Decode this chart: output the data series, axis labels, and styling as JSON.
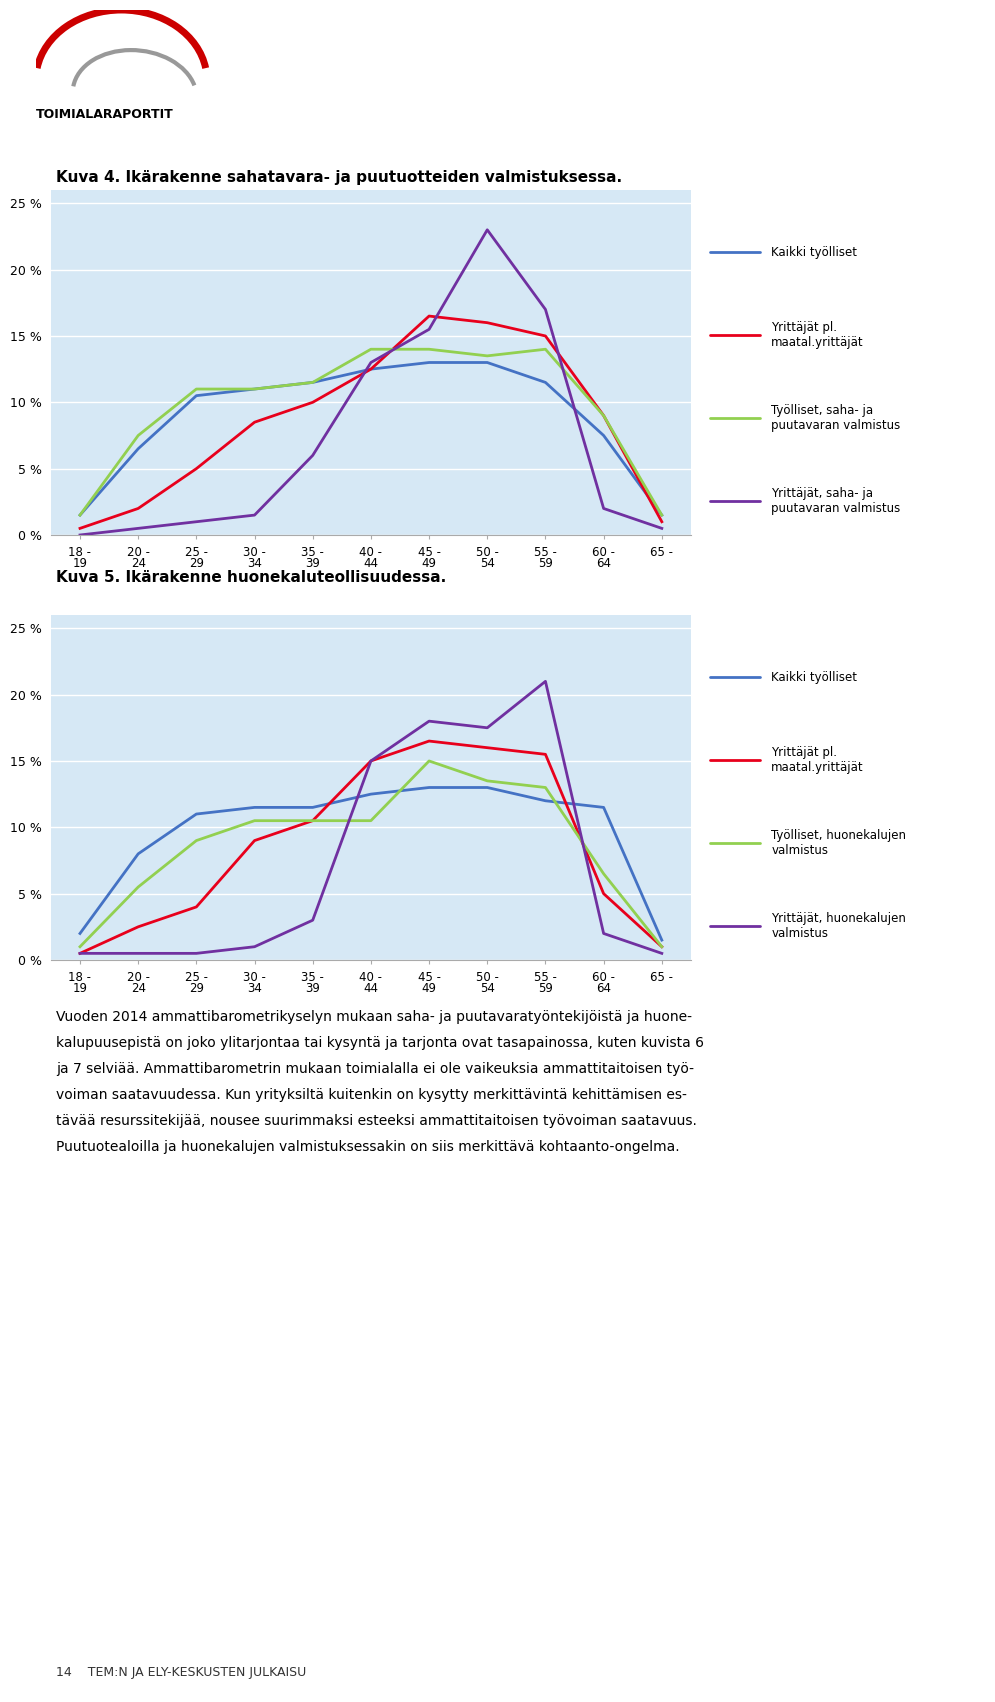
{
  "title1": "Kuva 4. Ikärakenne sahatavara- ja puutuotteiden valmistuksessa.",
  "title2": "Kuva 5. Ikärakenne huonekaluteollisuudessa.",
  "x_labels_top": [
    "18 -",
    "20 -",
    "25 -",
    "30 -",
    "35 -",
    "40 -",
    "45 -",
    "50 -",
    "55 -",
    "60 -",
    "65 -"
  ],
  "x_labels_bot": [
    "19",
    "24",
    "29",
    "34",
    "39",
    "44",
    "49",
    "54",
    "59",
    "64",
    ""
  ],
  "chart1": {
    "kaikki_tyolliset": [
      1.5,
      6.5,
      10.5,
      11.0,
      11.5,
      12.5,
      13.0,
      13.0,
      11.5,
      7.5,
      1.5
    ],
    "yrittajat_pl_maatal": [
      0.5,
      2.0,
      5.0,
      8.5,
      10.0,
      12.5,
      16.5,
      16.0,
      15.0,
      9.0,
      1.0
    ],
    "tyolliset_saha": [
      1.5,
      7.5,
      11.0,
      11.0,
      11.5,
      14.0,
      14.0,
      13.5,
      14.0,
      9.0,
      1.5
    ],
    "yrittajat_saha": [
      0.0,
      0.5,
      1.0,
      1.5,
      6.0,
      13.0,
      15.5,
      23.0,
      17.0,
      2.0,
      0.5
    ]
  },
  "chart2": {
    "kaikki_tyolliset": [
      2.0,
      8.0,
      11.0,
      11.5,
      11.5,
      12.5,
      13.0,
      13.0,
      12.0,
      11.5,
      1.5
    ],
    "yrittajat_pl_maatal": [
      0.5,
      2.5,
      4.0,
      9.0,
      10.5,
      15.0,
      16.5,
      16.0,
      15.5,
      5.0,
      1.0
    ],
    "tyolliset_huone": [
      1.0,
      5.5,
      9.0,
      10.5,
      10.5,
      10.5,
      15.0,
      13.5,
      13.0,
      6.5,
      1.0
    ],
    "yrittajat_huone": [
      0.5,
      0.5,
      0.5,
      1.0,
      3.0,
      15.0,
      18.0,
      17.5,
      21.0,
      2.0,
      0.5
    ]
  },
  "legend1": [
    "Kaikki työlliset",
    "Yrittäjät pl.\nmaatal.yrittäjät",
    "Työlliset, saha- ja\npuutavaran valmistus",
    "Yrittäjät, saha- ja\npuutavaran valmistus"
  ],
  "legend2": [
    "Kaikki työlliset",
    "Yrittäjät pl.\nmaatal.yrittäjät",
    "Työlliset, huonekalujen\nvalmistus",
    "Yrittäjät, huonekalujen\nvalmistus"
  ],
  "colors": [
    "#4472C4",
    "#E8001C",
    "#92D050",
    "#7030A0"
  ],
  "bg_color": "#D6E8F5",
  "ylim": [
    0.0,
    0.26
  ],
  "yticks": [
    0.0,
    0.05,
    0.1,
    0.15,
    0.2,
    0.25
  ],
  "ytick_labels": [
    "0 %",
    "5 %",
    "10 %",
    "15 %",
    "20 %",
    "25 %"
  ],
  "body_text_lines": [
    "Vuoden 2014 ammattibarometrikyselyn mukaan saha- ja puutavaratyöntekijöistä ja huone-",
    "kalupuusepistä on joko ylitarjontaa tai kysyntä ja tarjonta ovat tasapainossa, kuten kuvista 6",
    "ja 7 selviää. Ammattibarometrin mukaan toimialalla ei ole vaikeuksia ammattitaitoisen työ-",
    "voiman saatavuudessa. Kun yrityksiltä kuitenkin on kysytty merkittävintä kehittämisen es-",
    "tävää resurssitekijää, nousee suurimmaksi esteeksi ammattitaitoisen työvoiman saatavuus.",
    "Puutuotealoilla ja huonekalujen valmistuksessakin on siis merkittävä kohtaanto-ongelma."
  ],
  "footer_text": "14    TEM:N JA ELY-KESKUSTEN JULKAISU",
  "logo_text": "TOIMIALARAPORTIT"
}
